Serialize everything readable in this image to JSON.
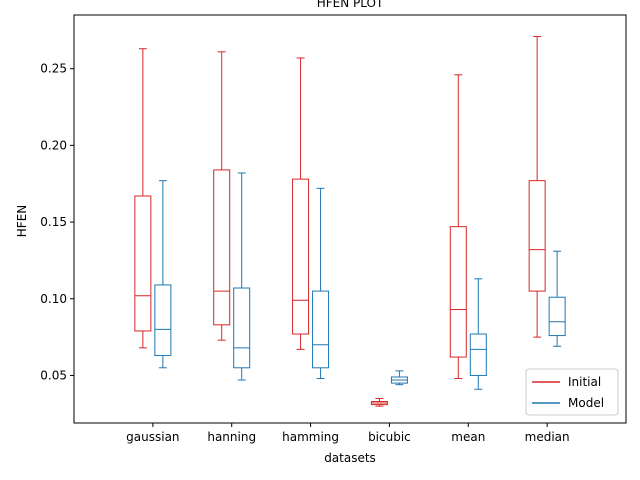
{
  "chart_data": {
    "type": "box",
    "title": "HFEN PLOT",
    "xlabel": "datasets",
    "ylabel": "HFEN",
    "ylim": [
      0.019,
      0.285
    ],
    "yticks": [
      0.05,
      0.1,
      0.15,
      0.2,
      0.25
    ],
    "ytick_labels": [
      "0.05",
      "0.10",
      "0.15",
      "0.20",
      "0.25"
    ],
    "categories": [
      "gaussian",
      "hanning",
      "hamming",
      "bicubic",
      "mean",
      "median"
    ],
    "legend_position": "bottom-right",
    "series": [
      {
        "name": "Initial",
        "color": "#d62728",
        "boxes": [
          {
            "whislo": 0.068,
            "q1": 0.079,
            "med": 0.102,
            "q3": 0.167,
            "whishi": 0.263
          },
          {
            "whislo": 0.073,
            "q1": 0.083,
            "med": 0.105,
            "q3": 0.184,
            "whishi": 0.261
          },
          {
            "whislo": 0.067,
            "q1": 0.077,
            "med": 0.099,
            "q3": 0.178,
            "whishi": 0.257
          },
          {
            "whislo": 0.03,
            "q1": 0.031,
            "med": 0.032,
            "q3": 0.033,
            "whishi": 0.035
          },
          {
            "whislo": 0.048,
            "q1": 0.062,
            "med": 0.093,
            "q3": 0.147,
            "whishi": 0.246
          },
          {
            "whislo": 0.075,
            "q1": 0.105,
            "med": 0.132,
            "q3": 0.177,
            "whishi": 0.271
          }
        ]
      },
      {
        "name": "Model",
        "color": "#1f77b4",
        "boxes": [
          {
            "whislo": 0.055,
            "q1": 0.063,
            "med": 0.08,
            "q3": 0.109,
            "whishi": 0.177
          },
          {
            "whislo": 0.047,
            "q1": 0.055,
            "med": 0.068,
            "q3": 0.107,
            "whishi": 0.182
          },
          {
            "whislo": 0.048,
            "q1": 0.055,
            "med": 0.07,
            "q3": 0.105,
            "whishi": 0.172
          },
          {
            "whislo": 0.044,
            "q1": 0.045,
            "med": 0.047,
            "q3": 0.049,
            "whishi": 0.053
          },
          {
            "whislo": 0.041,
            "q1": 0.05,
            "med": 0.067,
            "q3": 0.077,
            "whishi": 0.113
          },
          {
            "whislo": 0.069,
            "q1": 0.076,
            "med": 0.085,
            "q3": 0.101,
            "whishi": 0.131
          }
        ]
      }
    ]
  }
}
